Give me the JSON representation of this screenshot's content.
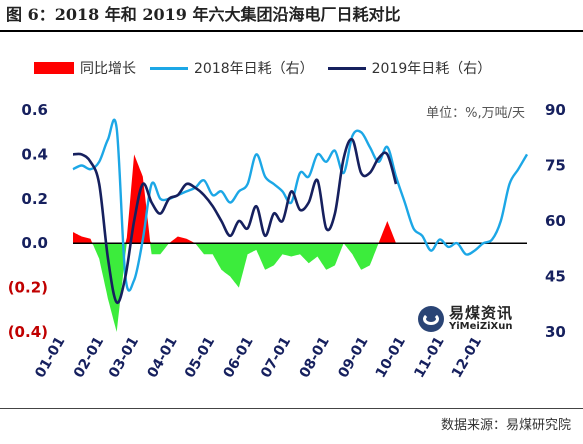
{
  "title": "图 6：2018 年和 2019 年六大集团沿海电厂日耗对比",
  "unit_label": "单位：%,万吨/天",
  "source": "数据来源：易煤研究院",
  "watermark": {
    "cn": "易煤资讯",
    "en": "YiMeiZiXun"
  },
  "colors": {
    "increase": "#ff0000",
    "decrease": "#3cec3c",
    "series_2018": "#1ca7e6",
    "series_2019": "#16205e",
    "left_axis_text": "#16205e",
    "negative_tick": "#c00000"
  },
  "chart_data": {
    "type": "line",
    "legend": [
      {
        "name": "同比增长",
        "kind": "area",
        "color": "#ff0000"
      },
      {
        "name": "2018年日耗（右）",
        "kind": "line",
        "color": "#1ca7e6"
      },
      {
        "name": "2019年日耗（右）",
        "kind": "line",
        "color": "#16205e"
      }
    ],
    "legend_position": "top",
    "x_ticks": [
      "01-01",
      "02-01",
      "03-01",
      "04-01",
      "05-01",
      "06-01",
      "07-01",
      "08-01",
      "09-01",
      "10-01",
      "11-01",
      "12-01"
    ],
    "x_domain": [
      1,
      365
    ],
    "left_axis": {
      "range": [
        -0.4,
        0.6
      ],
      "ticks": [
        0.6,
        0.4,
        0.2,
        0.0,
        -0.2,
        -0.4
      ],
      "tick_labels": [
        "0.6",
        "0.4",
        "0.2",
        "0.0",
        "(0.2)",
        "(0.4)"
      ]
    },
    "right_axis": {
      "range": [
        30,
        90
      ],
      "ticks": [
        90,
        75,
        60,
        45,
        30
      ],
      "tick_labels": [
        "90",
        "75",
        "60",
        "45",
        "30"
      ]
    },
    "series": [
      {
        "name": "2018年日耗（右）",
        "axis": "right",
        "x": [
          1,
          8,
          15,
          22,
          29,
          36,
          43,
          50,
          57,
          64,
          71,
          78,
          85,
          92,
          99,
          106,
          113,
          120,
          127,
          134,
          141,
          148,
          155,
          162,
          169,
          176,
          183,
          190,
          197,
          204,
          211,
          218,
          225,
          232,
          239,
          246,
          253,
          260,
          267,
          274,
          281,
          288,
          295,
          302,
          309,
          316,
          323,
          330,
          337,
          344,
          351,
          358,
          365
        ],
        "y": [
          74,
          75,
          74,
          76,
          82,
          85,
          45,
          44,
          55,
          70,
          66,
          66,
          67,
          68,
          69,
          71,
          67,
          68,
          65,
          68,
          70,
          78,
          72,
          70,
          68,
          65,
          73,
          72,
          78,
          76,
          79,
          73,
          83,
          84,
          80,
          76,
          80,
          72,
          65,
          58,
          56,
          52,
          55,
          53,
          54,
          51,
          52,
          54,
          55,
          60,
          70,
          74,
          78
        ]
      },
      {
        "name": "2019年日耗（右）",
        "axis": "right",
        "x": [
          1,
          8,
          15,
          22,
          29,
          36,
          43,
          50,
          57,
          64,
          71,
          78,
          85,
          92,
          99,
          106,
          113,
          120,
          127,
          134,
          141,
          148,
          155,
          162,
          169,
          176,
          183,
          190,
          197,
          204,
          211,
          218,
          225,
          232,
          239,
          246,
          253,
          260
        ],
        "y": [
          78,
          78,
          76,
          70,
          50,
          38,
          45,
          60,
          70,
          65,
          62,
          66,
          67,
          70,
          69,
          67,
          64,
          60,
          56,
          60,
          58,
          64,
          56,
          62,
          60,
          68,
          63,
          65,
          71,
          58,
          62,
          77,
          82,
          73,
          73,
          77,
          78,
          70
        ]
      },
      {
        "name": "同比增长",
        "axis": "left",
        "kind": "area",
        "x": [
          1,
          8,
          15,
          22,
          29,
          36,
          43,
          50,
          57,
          64,
          71,
          78,
          85,
          92,
          99,
          106,
          113,
          120,
          127,
          134,
          141,
          148,
          155,
          162,
          169,
          176,
          183,
          190,
          197,
          204,
          211,
          218,
          225,
          232,
          239,
          246,
          253,
          260
        ],
        "y": [
          0.05,
          0.03,
          0.02,
          -0.07,
          -0.25,
          -0.4,
          -0.05,
          0.4,
          0.3,
          -0.05,
          -0.05,
          0.0,
          0.03,
          0.02,
          0.0,
          -0.05,
          -0.05,
          -0.12,
          -0.15,
          -0.2,
          -0.05,
          -0.03,
          -0.12,
          -0.1,
          -0.05,
          -0.06,
          -0.05,
          -0.09,
          -0.06,
          -0.12,
          -0.1,
          0.0,
          -0.05,
          -0.12,
          -0.1,
          0.0,
          0.1,
          0.0
        ]
      }
    ]
  }
}
